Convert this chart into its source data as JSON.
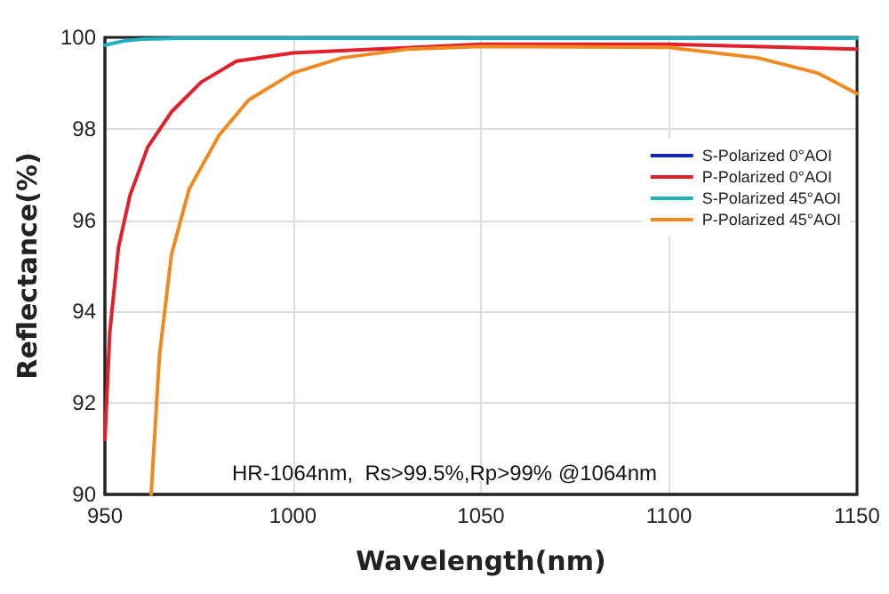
{
  "chart_data": {
    "type": "line",
    "xlabel": "Wavelength(nm)",
    "ylabel": "Reflectance(%)",
    "xlim": [
      950,
      1150
    ],
    "xticks": [
      950,
      1000,
      1050,
      1100,
      1150
    ],
    "ylim": [
      90,
      100
    ],
    "yticks": [
      90,
      92,
      94,
      96,
      98,
      100
    ],
    "grid": true,
    "legend": "right",
    "marker": "none",
    "line_style": "solid",
    "annotations": [
      "HR-1064nm,  Rs>99.5%,Rp>99% @1064nm"
    ],
    "series": [
      {
        "name": "S-Polarized 0°AOI",
        "color": "#1428c0",
        "values": [
          null
        ]
      },
      {
        "name": "P-Polarized 0°AOI",
        "color": "#e0202a",
        "x": [
          950,
          951.3,
          953.6,
          956.7,
          961.4,
          967.7,
          975.6,
          985,
          1000,
          1050,
          1100,
          1150
        ],
        "values": [
          91.2,
          93.55,
          95.4,
          96.55,
          97.6,
          98.37,
          99.02,
          99.48,
          99.66,
          99.85,
          99.85,
          99.74
        ]
      },
      {
        "name": "S-Polarized 45°AOI",
        "color": "#20b0c0",
        "x": [
          950,
          955,
          960,
          970,
          1000,
          1050,
          1100,
          1150
        ],
        "values": [
          99.83,
          99.92,
          99.96,
          99.98,
          99.98,
          99.98,
          99.98,
          99.98
        ]
      },
      {
        "name": "P-Polarized 45°AOI",
        "color": "#f08a20",
        "x": [
          962.3,
          964.5,
          967.7,
          972.4,
          980.3,
          988.2,
          1000,
          1012.9,
          1030.4,
          1050,
          1100,
          1123.7,
          1139.5,
          1150
        ],
        "values": [
          90,
          93.03,
          95.25,
          96.68,
          97.85,
          98.63,
          99.22,
          99.55,
          99.74,
          99.8,
          99.78,
          99.55,
          99.22,
          98.77
        ]
      }
    ]
  }
}
